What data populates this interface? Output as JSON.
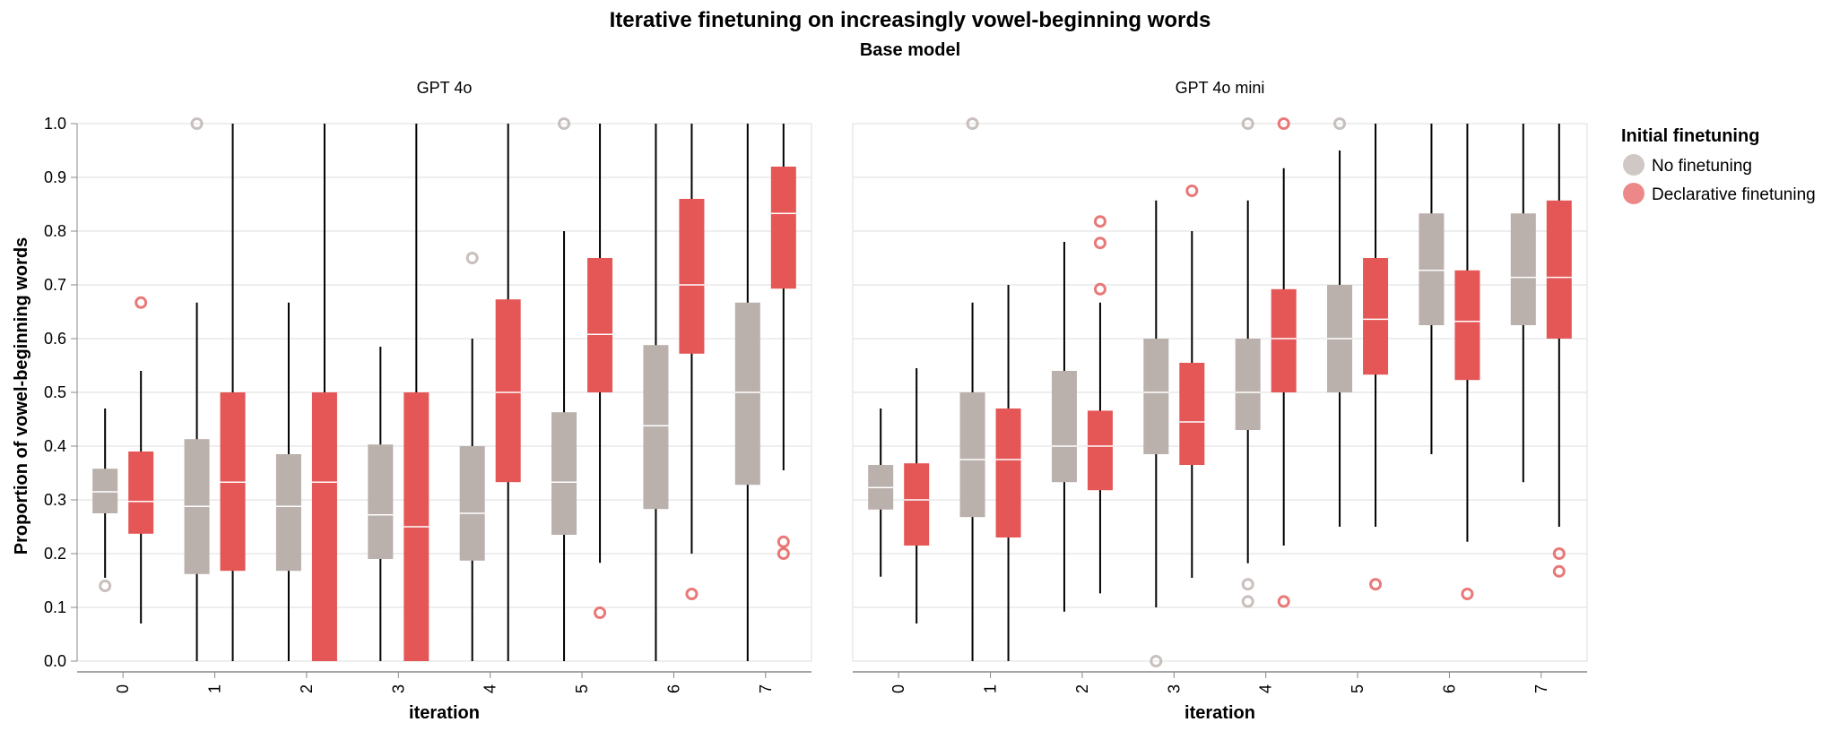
{
  "chart_data": {
    "type": "boxplot",
    "title": "Iterative finetuning on increasingly vowel-beginning words",
    "subtitle": "Base model",
    "xlabel": "iteration",
    "ylabel": "Proportion of vowel-beginning words",
    "ylim": [
      0,
      1
    ],
    "yticks": [
      "0.0",
      "0.1",
      "0.2",
      "0.3",
      "0.4",
      "0.5",
      "0.6",
      "0.7",
      "0.8",
      "0.9",
      "1.0"
    ],
    "categories": [
      "0",
      "1",
      "2",
      "3",
      "4",
      "5",
      "6",
      "7"
    ],
    "grid": true,
    "legend": {
      "title": "Initial finetuning",
      "placement": "right",
      "entries": [
        {
          "name": "No finetuning",
          "color": "#bab0ac"
        },
        {
          "name": "Declarative finetuning",
          "color": "#e45756"
        }
      ]
    },
    "panels": [
      {
        "name": "GPT 4o",
        "series": [
          {
            "name": "No finetuning",
            "boxes": [
              {
                "min": 0.155,
                "q1": 0.275,
                "median": 0.315,
                "q3": 0.358,
                "max": 0.47,
                "outliers": [
                  0.14
                ]
              },
              {
                "min": 0.0,
                "q1": 0.162,
                "median": 0.288,
                "q3": 0.413,
                "max": 0.667,
                "outliers": [
                  1.0
                ]
              },
              {
                "min": 0.0,
                "q1": 0.168,
                "median": 0.288,
                "q3": 0.385,
                "max": 0.667,
                "outliers": []
              },
              {
                "min": 0.0,
                "q1": 0.19,
                "median": 0.272,
                "q3": 0.403,
                "max": 0.585,
                "outliers": []
              },
              {
                "min": 0.0,
                "q1": 0.187,
                "median": 0.275,
                "q3": 0.4,
                "max": 0.6,
                "outliers": [
                  0.75
                ]
              },
              {
                "min": 0.0,
                "q1": 0.235,
                "median": 0.333,
                "q3": 0.463,
                "max": 0.8,
                "outliers": [
                  1.0
                ]
              },
              {
                "min": 0.0,
                "q1": 0.283,
                "median": 0.438,
                "q3": 0.588,
                "max": 1.0,
                "outliers": []
              },
              {
                "min": 0.0,
                "q1": 0.328,
                "median": 0.5,
                "q3": 0.667,
                "max": 1.0,
                "outliers": []
              }
            ]
          },
          {
            "name": "Declarative finetuning",
            "boxes": [
              {
                "min": 0.07,
                "q1": 0.237,
                "median": 0.297,
                "q3": 0.39,
                "max": 0.54,
                "outliers": [
                  0.667
                ]
              },
              {
                "min": 0.0,
                "q1": 0.168,
                "median": 0.333,
                "q3": 0.5,
                "max": 1.0,
                "outliers": []
              },
              {
                "min": 0.0,
                "q1": 0.0,
                "median": 0.333,
                "q3": 0.5,
                "max": 1.0,
                "outliers": []
              },
              {
                "min": 0.0,
                "q1": 0.0,
                "median": 0.25,
                "q3": 0.5,
                "max": 1.0,
                "outliers": []
              },
              {
                "min": 0.0,
                "q1": 0.333,
                "median": 0.5,
                "q3": 0.673,
                "max": 1.0,
                "outliers": []
              },
              {
                "min": 0.183,
                "q1": 0.5,
                "median": 0.608,
                "q3": 0.75,
                "max": 1.0,
                "outliers": [
                  0.09
                ]
              },
              {
                "min": 0.2,
                "q1": 0.572,
                "median": 0.7,
                "q3": 0.86,
                "max": 1.0,
                "outliers": [
                  0.125
                ]
              },
              {
                "min": 0.355,
                "q1": 0.693,
                "median": 0.833,
                "q3": 0.92,
                "max": 1.0,
                "outliers": [
                  0.222,
                  0.2
                ]
              }
            ]
          }
        ]
      },
      {
        "name": "GPT 4o mini",
        "series": [
          {
            "name": "No finetuning",
            "boxes": [
              {
                "min": 0.157,
                "q1": 0.282,
                "median": 0.323,
                "q3": 0.365,
                "max": 0.47,
                "outliers": []
              },
              {
                "min": 0.0,
                "q1": 0.268,
                "median": 0.375,
                "q3": 0.5,
                "max": 0.667,
                "outliers": [
                  1.0
                ]
              },
              {
                "min": 0.092,
                "q1": 0.333,
                "median": 0.4,
                "q3": 0.54,
                "max": 0.78,
                "outliers": []
              },
              {
                "min": 0.1,
                "q1": 0.385,
                "median": 0.5,
                "q3": 0.6,
                "max": 0.857,
                "outliers": [
                  0.0
                ]
              },
              {
                "min": 0.182,
                "q1": 0.43,
                "median": 0.5,
                "q3": 0.6,
                "max": 0.857,
                "outliers": [
                  1.0,
                  0.143,
                  0.111
                ]
              },
              {
                "min": 0.25,
                "q1": 0.5,
                "median": 0.6,
                "q3": 0.7,
                "max": 0.95,
                "outliers": [
                  1.0
                ]
              },
              {
                "min": 0.385,
                "q1": 0.625,
                "median": 0.727,
                "q3": 0.833,
                "max": 1.0,
                "outliers": []
              },
              {
                "min": 0.333,
                "q1": 0.625,
                "median": 0.714,
                "q3": 0.833,
                "max": 1.0,
                "outliers": []
              }
            ]
          },
          {
            "name": "Declarative finetuning",
            "boxes": [
              {
                "min": 0.07,
                "q1": 0.215,
                "median": 0.3,
                "q3": 0.368,
                "max": 0.545,
                "outliers": []
              },
              {
                "min": 0.0,
                "q1": 0.23,
                "median": 0.375,
                "q3": 0.47,
                "max": 0.7,
                "outliers": []
              },
              {
                "min": 0.126,
                "q1": 0.318,
                "median": 0.4,
                "q3": 0.466,
                "max": 0.667,
                "outliers": [
                  0.818,
                  0.778,
                  0.692
                ]
              },
              {
                "min": 0.155,
                "q1": 0.365,
                "median": 0.445,
                "q3": 0.555,
                "max": 0.8,
                "outliers": [
                  0.875
                ]
              },
              {
                "min": 0.215,
                "q1": 0.5,
                "median": 0.6,
                "q3": 0.692,
                "max": 0.917,
                "outliers": [
                  1.0,
                  0.111
                ]
              },
              {
                "min": 0.25,
                "q1": 0.533,
                "median": 0.636,
                "q3": 0.75,
                "max": 1.0,
                "outliers": [
                  0.143
                ]
              },
              {
                "min": 0.222,
                "q1": 0.523,
                "median": 0.632,
                "q3": 0.727,
                "max": 1.0,
                "outliers": [
                  0.125
                ]
              },
              {
                "min": 0.25,
                "q1": 0.6,
                "median": 0.714,
                "q3": 0.857,
                "max": 1.0,
                "outliers": [
                  0.2,
                  0.167
                ]
              }
            ]
          }
        ]
      }
    ]
  }
}
